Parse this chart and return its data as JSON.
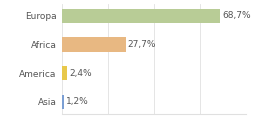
{
  "categories": [
    "Asia",
    "America",
    "Africa",
    "Europa"
  ],
  "values": [
    1.2,
    2.4,
    27.7,
    68.7
  ],
  "labels": [
    "1,2%",
    "2,4%",
    "27,7%",
    "68,7%"
  ],
  "bar_colors": [
    "#7b9fd4",
    "#e8c84a",
    "#e8b882",
    "#b8cc96"
  ],
  "background_color": "#ffffff",
  "xlim": [
    0,
    80
  ],
  "label_fontsize": 6.5,
  "category_fontsize": 6.5,
  "grid_color": "#e0e0e0",
  "text_color": "#555555"
}
